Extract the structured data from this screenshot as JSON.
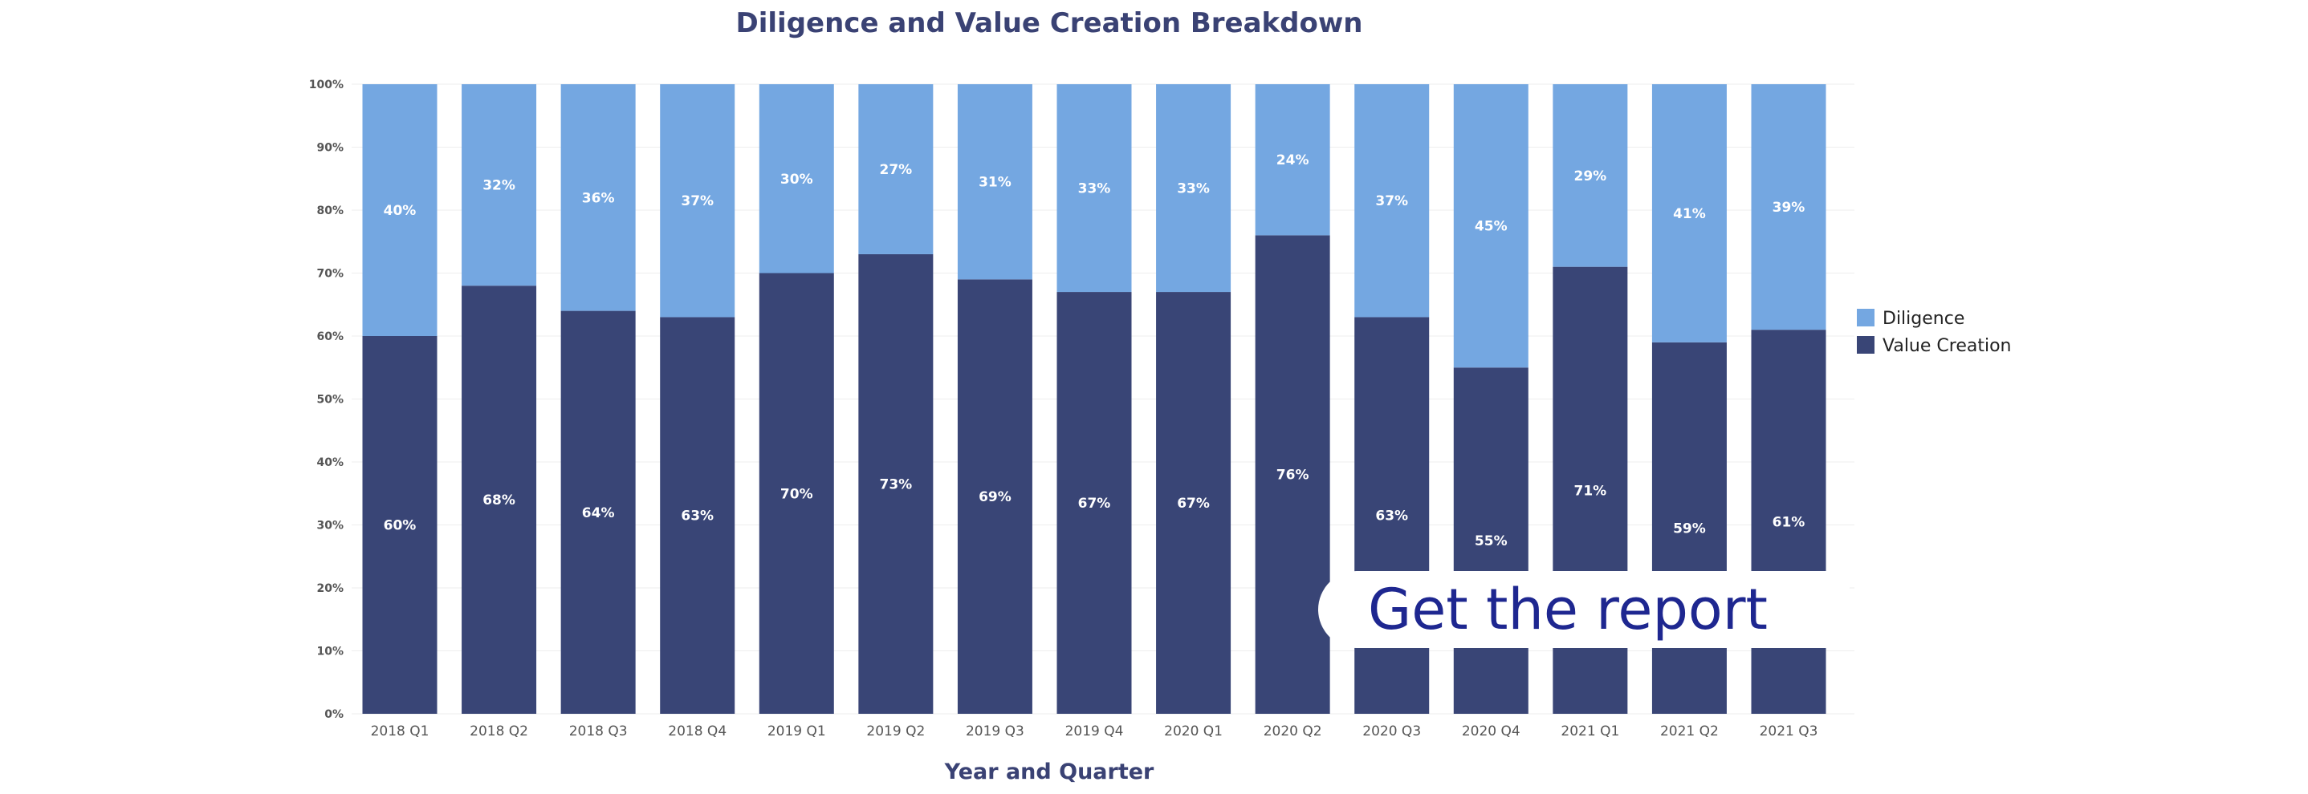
{
  "cta": {
    "label": "Get the report"
  },
  "colors": {
    "diligence": "#74a7e1",
    "value_creation": "#394576",
    "title": "#3a4274"
  },
  "chart_data": {
    "type": "bar",
    "stacked": true,
    "title": "Diligence and Value Creation Breakdown",
    "xlabel": "Year and Quarter",
    "ylabel": "",
    "ylim": [
      0,
      100
    ],
    "y_ticks": [
      "0%",
      "10%",
      "20%",
      "30%",
      "40%",
      "50%",
      "60%",
      "70%",
      "80%",
      "90%",
      "100%"
    ],
    "grid": true,
    "legend_position": "right",
    "categories": [
      "2018 Q1",
      "2018 Q2",
      "2018 Q3",
      "2018 Q4",
      "2019 Q1",
      "2019 Q2",
      "2019 Q3",
      "2019 Q4",
      "2020 Q1",
      "2020 Q2",
      "2020 Q3",
      "2020 Q4",
      "2021 Q1",
      "2021 Q2",
      "2021 Q3"
    ],
    "series": [
      {
        "name": "Value Creation",
        "color": "#394576",
        "values": [
          60,
          68,
          64,
          63,
          70,
          73,
          69,
          67,
          67,
          76,
          63,
          55,
          71,
          59,
          61
        ]
      },
      {
        "name": "Diligence",
        "color": "#74a7e1",
        "values": [
          40,
          32,
          36,
          37,
          30,
          27,
          31,
          33,
          33,
          24,
          37,
          45,
          29,
          41,
          39
        ]
      }
    ],
    "legend": [
      "Diligence",
      "Value Creation"
    ]
  }
}
